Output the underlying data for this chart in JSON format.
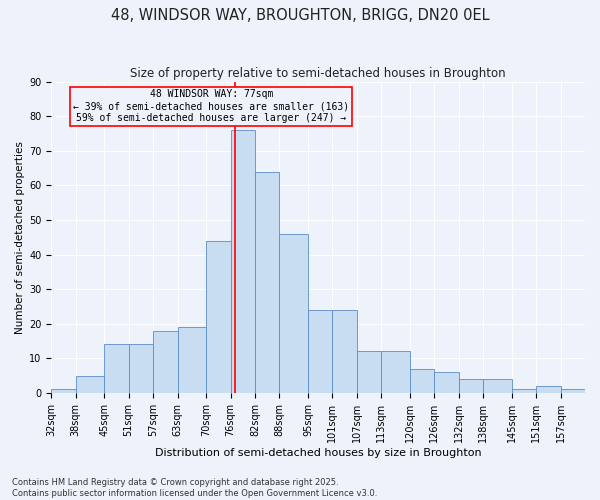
{
  "title_line1": "48, WINDSOR WAY, BROUGHTON, BRIGG, DN20 0EL",
  "title_line2": "Size of property relative to semi-detached houses in Broughton",
  "xlabel": "Distribution of semi-detached houses by size in Broughton",
  "ylabel": "Number of semi-detached properties",
  "footer_line1": "Contains HM Land Registry data © Crown copyright and database right 2025.",
  "footer_line2": "Contains public sector information licensed under the Open Government Licence v3.0.",
  "annotation_line1": "48 WINDSOR WAY: 77sqm",
  "annotation_line2": "← 39% of semi-detached houses are smaller (163)",
  "annotation_line3": "59% of semi-detached houses are larger (247) →",
  "property_size": 77,
  "bin_labels": [
    "32sqm",
    "38sqm",
    "45sqm",
    "51sqm",
    "57sqm",
    "63sqm",
    "70sqm",
    "76sqm",
    "82sqm",
    "88sqm",
    "95sqm",
    "101sqm",
    "107sqm",
    "113sqm",
    "120sqm",
    "126sqm",
    "132sqm",
    "138sqm",
    "145sqm",
    "151sqm",
    "157sqm"
  ],
  "bin_edges": [
    32,
    38,
    45,
    51,
    57,
    63,
    70,
    76,
    82,
    88,
    95,
    101,
    107,
    113,
    120,
    126,
    132,
    138,
    145,
    151,
    157,
    163
  ],
  "bar_heights": [
    1,
    5,
    14,
    14,
    18,
    19,
    44,
    76,
    64,
    46,
    24,
    24,
    12,
    12,
    7,
    6,
    4,
    4,
    1,
    2,
    1
  ],
  "bar_color": "#c8ddf2",
  "bar_edge_color": "#5b8ec4",
  "vline_color": "red",
  "vline_x": 77,
  "annotation_box_color": "red",
  "ylim": [
    0,
    90
  ],
  "yticks": [
    0,
    10,
    20,
    30,
    40,
    50,
    60,
    70,
    80,
    90
  ],
  "bg_color": "#eef2fb",
  "grid_color": "white",
  "title1_fontsize": 10.5,
  "title2_fontsize": 8.5,
  "xlabel_fontsize": 8,
  "ylabel_fontsize": 7.5,
  "tick_fontsize": 7,
  "footer_fontsize": 6,
  "ann_fontsize": 7
}
